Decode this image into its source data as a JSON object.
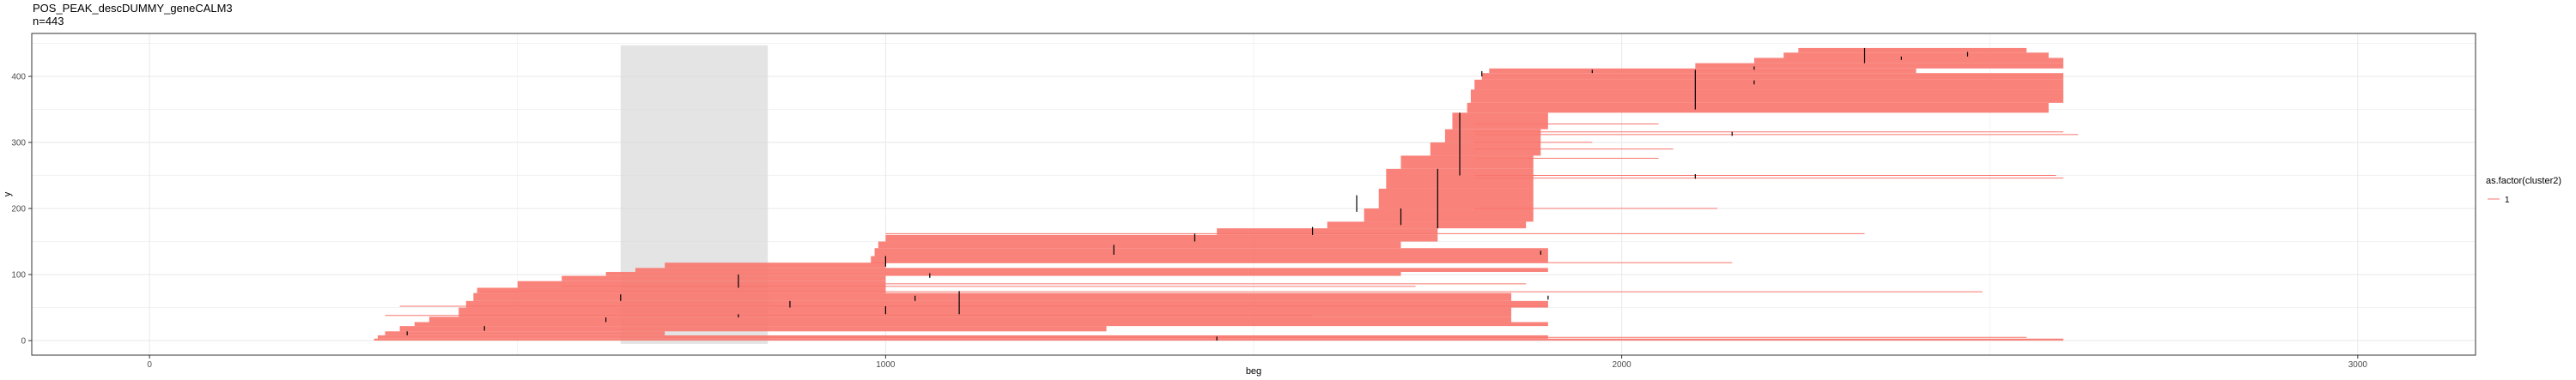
{
  "title": "POS_PEAK_descDUMMY_geneCALM3",
  "subtitle": "n=443",
  "chart_data": {
    "type": "segment",
    "xlabel": "beg",
    "ylabel": "y",
    "xlim": [
      -160,
      3160
    ],
    "ylim": [
      -22,
      465
    ],
    "x_ticks": [
      0,
      1000,
      2000,
      3000
    ],
    "x_tick_labels": [
      "0",
      "1000",
      "2000",
      "3000"
    ],
    "y_ticks": [
      0,
      100,
      200,
      300,
      400
    ],
    "y_tick_labels": [
      "0",
      "100",
      "200",
      "300",
      "400"
    ],
    "grid": true,
    "legend": {
      "title": "as.factor(cluster2)",
      "entries": [
        "1"
      ],
      "position": "right"
    },
    "colors": {
      "segment": "#f8766d",
      "highlight": "#d9d9d9",
      "peak": "#000000",
      "grid": "#ebebeb",
      "panel_border": "#333333"
    },
    "highlight_region": {
      "x": [
        640,
        840
      ],
      "y": [
        -5,
        447
      ]
    },
    "blocks": [
      {
        "x0": 305,
        "x1": 2600,
        "y0": 0,
        "y1": 3
      },
      {
        "x0": 310,
        "x1": 1900,
        "y0": 3,
        "y1": 8
      },
      {
        "x0": 320,
        "x1": 700,
        "y0": 8,
        "y1": 14
      },
      {
        "x0": 340,
        "x1": 1300,
        "y0": 14,
        "y1": 22
      },
      {
        "x0": 360,
        "x1": 1900,
        "y0": 22,
        "y1": 28
      },
      {
        "x0": 380,
        "x1": 1850,
        "y0": 28,
        "y1": 36
      },
      {
        "x0": 420,
        "x1": 1850,
        "y0": 36,
        "y1": 50
      },
      {
        "x0": 430,
        "x1": 1900,
        "y0": 50,
        "y1": 60
      },
      {
        "x0": 440,
        "x1": 1850,
        "y0": 60,
        "y1": 72
      },
      {
        "x0": 445,
        "x1": 1000,
        "y0": 72,
        "y1": 80
      },
      {
        "x0": 500,
        "x1": 1000,
        "y0": 80,
        "y1": 90
      },
      {
        "x0": 560,
        "x1": 1000,
        "y0": 90,
        "y1": 98
      },
      {
        "x0": 620,
        "x1": 1700,
        "y0": 98,
        "y1": 104
      },
      {
        "x0": 660,
        "x1": 1900,
        "y0": 104,
        "y1": 110
      },
      {
        "x0": 700,
        "x1": 1000,
        "y0": 110,
        "y1": 118
      },
      {
        "x0": 980,
        "x1": 1900,
        "y0": 118,
        "y1": 128
      },
      {
        "x0": 985,
        "x1": 1900,
        "y0": 128,
        "y1": 140
      },
      {
        "x0": 990,
        "x1": 1700,
        "y0": 140,
        "y1": 150
      },
      {
        "x0": 1000,
        "x1": 1750,
        "y0": 150,
        "y1": 160
      },
      {
        "x0": 1450,
        "x1": 1750,
        "y0": 160,
        "y1": 170
      },
      {
        "x0": 1600,
        "x1": 1870,
        "y0": 170,
        "y1": 180
      },
      {
        "x0": 1650,
        "x1": 1880,
        "y0": 180,
        "y1": 200
      },
      {
        "x0": 1670,
        "x1": 1880,
        "y0": 200,
        "y1": 230
      },
      {
        "x0": 1680,
        "x1": 1880,
        "y0": 230,
        "y1": 260
      },
      {
        "x0": 1700,
        "x1": 1880,
        "y0": 260,
        "y1": 280
      },
      {
        "x0": 1740,
        "x1": 1890,
        "y0": 280,
        "y1": 300
      },
      {
        "x0": 1760,
        "x1": 1890,
        "y0": 300,
        "y1": 320
      },
      {
        "x0": 1770,
        "x1": 1900,
        "y0": 320,
        "y1": 345
      },
      {
        "x0": 1790,
        "x1": 2580,
        "y0": 345,
        "y1": 360
      },
      {
        "x0": 1795,
        "x1": 2600,
        "y0": 360,
        "y1": 380
      },
      {
        "x0": 1800,
        "x1": 2600,
        "y0": 380,
        "y1": 395
      },
      {
        "x0": 1810,
        "x1": 2600,
        "y0": 395,
        "y1": 405
      },
      {
        "x0": 1820,
        "x1": 2400,
        "y0": 405,
        "y1": 412
      },
      {
        "x0": 2100,
        "x1": 2600,
        "y0": 412,
        "y1": 420
      },
      {
        "x0": 2180,
        "x1": 2600,
        "y0": 420,
        "y1": 428
      },
      {
        "x0": 2220,
        "x1": 2580,
        "y0": 428,
        "y1": 436
      },
      {
        "x0": 2240,
        "x1": 2550,
        "y0": 436,
        "y1": 443
      }
    ],
    "lines": [
      {
        "x0": 700,
        "x1": 2550,
        "y": 5
      },
      {
        "x0": 320,
        "x1": 1580,
        "y": 38
      },
      {
        "x0": 340,
        "x1": 1900,
        "y": 52
      },
      {
        "x0": 450,
        "x1": 2490,
        "y": 74
      },
      {
        "x0": 560,
        "x1": 1720,
        "y": 82
      },
      {
        "x0": 1000,
        "x1": 1870,
        "y": 86
      },
      {
        "x0": 980,
        "x1": 2150,
        "y": 118
      },
      {
        "x0": 1000,
        "x1": 2330,
        "y": 162
      },
      {
        "x0": 1800,
        "x1": 2130,
        "y": 200
      },
      {
        "x0": 1800,
        "x1": 2590,
        "y": 250
      },
      {
        "x0": 1800,
        "x1": 2600,
        "y": 246
      },
      {
        "x0": 1800,
        "x1": 2620,
        "y": 312
      },
      {
        "x0": 1800,
        "x1": 2600,
        "y": 316
      },
      {
        "x0": 1800,
        "x1": 2050,
        "y": 328
      },
      {
        "x0": 1800,
        "x1": 2050,
        "y": 276
      },
      {
        "x0": 1800,
        "x1": 2070,
        "y": 290
      },
      {
        "x0": 1800,
        "x1": 1960,
        "y": 300
      }
    ],
    "peaks": [
      {
        "x": 2100,
        "y0": 350,
        "y1": 410
      },
      {
        "x": 2330,
        "y0": 420,
        "y1": 443
      },
      {
        "x": 800,
        "y0": 80,
        "y1": 100
      },
      {
        "x": 1780,
        "y0": 250,
        "y1": 345
      },
      {
        "x": 1100,
        "y0": 40,
        "y1": 75
      },
      {
        "x": 1700,
        "y0": 175,
        "y1": 200
      },
      {
        "x": 1750,
        "y0": 170,
        "y1": 260
      },
      {
        "x": 1640,
        "y0": 195,
        "y1": 220
      },
      {
        "x": 1310,
        "y0": 130,
        "y1": 145
      },
      {
        "x": 1420,
        "y0": 150,
        "y1": 162
      },
      {
        "x": 1580,
        "y0": 160,
        "y1": 172
      },
      {
        "x": 1000,
        "y0": 112,
        "y1": 128
      },
      {
        "x": 870,
        "y0": 50,
        "y1": 60
      },
      {
        "x": 1000,
        "y0": 40,
        "y1": 52
      },
      {
        "x": 640,
        "y0": 60,
        "y1": 70
      },
      {
        "x": 455,
        "y0": 15,
        "y1": 22
      },
      {
        "x": 350,
        "y0": 8,
        "y1": 14
      },
      {
        "x": 1450,
        "y0": 0,
        "y1": 6
      },
      {
        "x": 2180,
        "y0": 410,
        "y1": 415
      },
      {
        "x": 1960,
        "y0": 405,
        "y1": 410
      },
      {
        "x": 1810,
        "y0": 400,
        "y1": 408
      },
      {
        "x": 2380,
        "y0": 425,
        "y1": 430
      },
      {
        "x": 2470,
        "y0": 430,
        "y1": 437
      },
      {
        "x": 1060,
        "y0": 95,
        "y1": 102
      },
      {
        "x": 1040,
        "y0": 60,
        "y1": 68
      },
      {
        "x": 620,
        "y0": 28,
        "y1": 35
      },
      {
        "x": 800,
        "y0": 35,
        "y1": 40
      },
      {
        "x": 1900,
        "y0": 62,
        "y1": 68
      },
      {
        "x": 2100,
        "y0": 245,
        "y1": 252
      },
      {
        "x": 2150,
        "y0": 310,
        "y1": 316
      },
      {
        "x": 2180,
        "y0": 388,
        "y1": 394
      },
      {
        "x": 1890,
        "y0": 130,
        "y1": 136
      }
    ]
  }
}
